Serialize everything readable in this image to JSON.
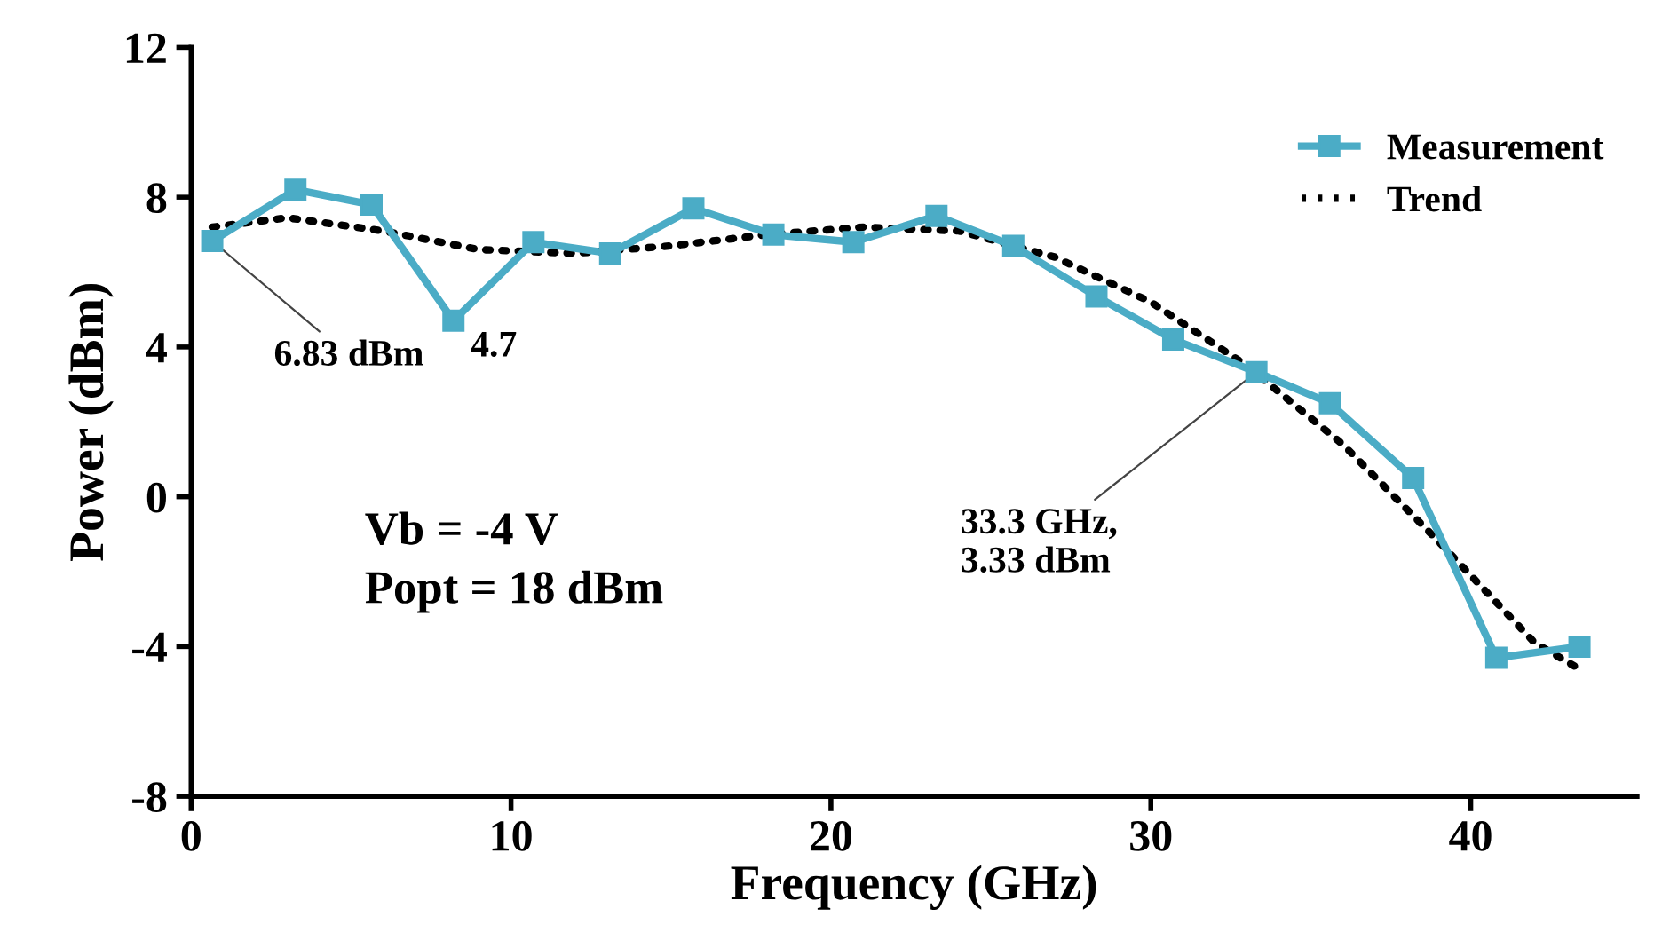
{
  "chart_data": {
    "type": "line",
    "xlabel": "Frequency (GHz)",
    "ylabel": "Power (dBm)",
    "xlim": [
      0,
      45.2
    ],
    "ylim": [
      -8,
      12
    ],
    "xticks": [
      0,
      10,
      20,
      30,
      40
    ],
    "yticks": [
      -8,
      -4,
      0,
      4,
      8,
      12
    ],
    "grid": false,
    "legend": "top right",
    "series": [
      {
        "name": "Measurement",
        "color": "#4bacc6",
        "marker": "square",
        "line_style": "solid",
        "x": [
          0.66,
          3.26,
          5.64,
          8.2,
          10.7,
          13.1,
          15.7,
          18.2,
          20.7,
          23.3,
          25.7,
          28.3,
          30.7,
          33.3,
          35.6,
          38.2,
          40.8,
          43.4
        ],
        "values": [
          6.83,
          8.2,
          7.8,
          4.7,
          6.8,
          6.5,
          7.7,
          7.0,
          6.8,
          7.5,
          6.7,
          5.35,
          4.2,
          3.33,
          2.5,
          0.5,
          -4.3,
          -4.0
        ]
      },
      {
        "name": "Trend",
        "color": "#000000",
        "marker": "none",
        "line_style": "dotted",
        "x": [
          0.66,
          3,
          6,
          9,
          12,
          15,
          18,
          21,
          24,
          27,
          30,
          33,
          36,
          39,
          42,
          43.4
        ],
        "values": [
          7.2,
          7.45,
          7.1,
          6.6,
          6.5,
          6.7,
          7.0,
          7.2,
          7.1,
          6.4,
          5.2,
          3.5,
          1.4,
          -1.2,
          -3.9,
          -4.6
        ]
      }
    ],
    "annotations": [
      {
        "text": "6.83 dBm",
        "x": 0.66,
        "y": 6.83
      },
      {
        "text": "4.7",
        "x": 8.2,
        "y": 4.7
      },
      {
        "text": "33.3 GHz,\n3.33 dBm",
        "x": 33.3,
        "y": 3.33
      },
      "Vb = -4 V\nPopt = 18 dBm"
    ]
  }
}
